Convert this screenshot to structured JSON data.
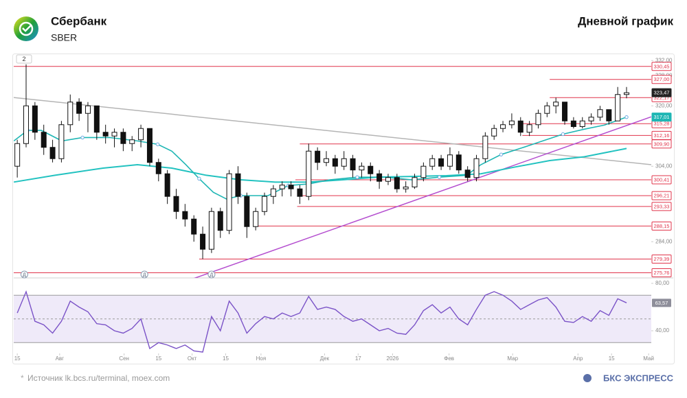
{
  "header": {
    "title": "Сбербанк",
    "ticker": "SBER",
    "chart_kind": "Дневной график"
  },
  "footer": {
    "source": "Источник lk.bcs.ru/terminal, moex.com",
    "brand": "БКС ЭКСПРЕСС"
  },
  "chart_data": {
    "type": "candlestick",
    "up_color": "#ffffff",
    "down_color": "#111111",
    "outline_color": "#111111",
    "xlim": [
      -0.4,
      71.8
    ],
    "ylim": [
      274.4,
      333.5
    ],
    "yticks": [
      {
        "value": 332,
        "label": "332,00"
      },
      {
        "value": 328,
        "label": "328,00"
      },
      {
        "value": 320,
        "label": "320,00"
      },
      {
        "value": 304,
        "label": "304,00"
      },
      {
        "value": 284,
        "label": "284,00"
      }
    ],
    "xticks": [
      {
        "value": 0,
        "label": "15"
      },
      {
        "value": 4.8,
        "label": "Авг"
      },
      {
        "value": 12.1,
        "label": "Сен"
      },
      {
        "value": 16.0,
        "label": "15"
      },
      {
        "value": 19.8,
        "label": "Окт"
      },
      {
        "value": 23.6,
        "label": "15"
      },
      {
        "value": 27.6,
        "label": "Ноя"
      },
      {
        "value": 34.8,
        "label": "Дек"
      },
      {
        "value": 38.6,
        "label": "17"
      },
      {
        "value": 42.5,
        "label": "2026"
      },
      {
        "value": 48.9,
        "label": "Фев"
      },
      {
        "value": 56.1,
        "label": "Мар"
      },
      {
        "value": 63.5,
        "label": "Апр"
      },
      {
        "value": 67.3,
        "label": "15"
      },
      {
        "value": 71.5,
        "label": "Май"
      }
    ],
    "interval_chip": "2",
    "ohlc": [
      [
        304,
        311,
        301,
        310
      ],
      [
        310,
        331,
        309,
        320
      ],
      [
        320,
        321,
        311,
        313
      ],
      [
        313,
        315,
        307,
        309
      ],
      [
        309,
        311,
        305,
        306
      ],
      [
        306,
        316,
        305,
        315
      ],
      [
        315,
        323,
        313,
        321
      ],
      [
        321,
        322,
        316,
        318
      ],
      [
        318,
        321,
        313,
        320
      ],
      [
        320,
        320,
        311,
        313
      ],
      [
        313,
        315,
        310,
        312
      ],
      [
        312,
        314,
        309,
        313
      ],
      [
        313,
        314,
        308,
        310
      ],
      [
        310,
        312,
        308,
        311
      ],
      [
        311,
        315,
        309,
        314
      ],
      [
        314,
        314,
        304,
        305
      ],
      [
        305,
        306,
        300,
        302
      ],
      [
        302,
        303,
        294,
        296
      ],
      [
        296,
        298,
        290,
        292
      ],
      [
        292,
        294,
        288,
        290
      ],
      [
        290,
        291,
        284,
        286
      ],
      [
        286,
        288,
        279.4,
        282
      ],
      [
        282,
        293,
        281,
        292
      ],
      [
        292,
        293,
        285,
        287
      ],
      [
        287,
        303,
        286,
        302
      ],
      [
        302,
        304,
        294,
        296
      ],
      [
        296,
        297,
        285,
        288
      ],
      [
        288,
        293,
        287,
        292
      ],
      [
        292,
        297,
        291,
        296
      ],
      [
        296,
        299,
        294,
        298
      ],
      [
        298,
        300,
        296,
        299
      ],
      [
        299,
        300,
        296,
        298
      ],
      [
        298,
        299,
        294,
        296
      ],
      [
        296,
        310,
        295,
        308
      ],
      [
        308,
        309,
        303,
        305
      ],
      [
        305,
        308,
        304,
        306
      ],
      [
        306,
        307,
        302,
        304
      ],
      [
        304,
        308,
        303,
        306
      ],
      [
        306,
        307,
        301,
        303
      ],
      [
        303,
        305,
        301,
        304
      ],
      [
        304,
        305,
        300,
        302
      ],
      [
        302,
        303,
        298,
        300
      ],
      [
        300,
        302,
        299,
        301
      ],
      [
        301,
        302,
        297,
        298
      ],
      [
        298,
        300,
        297,
        298.5
      ],
      [
        298.5,
        302,
        298,
        301
      ],
      [
        301,
        305,
        300,
        304
      ],
      [
        304,
        307,
        303,
        306
      ],
      [
        306,
        307,
        303,
        304
      ],
      [
        304,
        309,
        303,
        307
      ],
      [
        307,
        308,
        302,
        303
      ],
      [
        303,
        304,
        300,
        301
      ],
      [
        301,
        307,
        300,
        306
      ],
      [
        306,
        313,
        305,
        312
      ],
      [
        312,
        315,
        311,
        314
      ],
      [
        314,
        316,
        313,
        315
      ],
      [
        315,
        318,
        314,
        316
      ],
      [
        316,
        317,
        312,
        313
      ],
      [
        313,
        316,
        312,
        315
      ],
      [
        315,
        319,
        314,
        318
      ],
      [
        318,
        321,
        317,
        320
      ],
      [
        320,
        322.17,
        318,
        321
      ],
      [
        321,
        321,
        315,
        316
      ],
      [
        316,
        317,
        314,
        314.5
      ],
      [
        314.5,
        317,
        314,
        316
      ],
      [
        316,
        318,
        315,
        317
      ],
      [
        317,
        320,
        316,
        319
      ],
      [
        319,
        319,
        315,
        316
      ],
      [
        316,
        325,
        316,
        323
      ],
      [
        323,
        325,
        322,
        323.47
      ]
    ],
    "last_price": {
      "value": 323.47,
      "label": "323,47",
      "color": "#222222"
    },
    "levels": [
      {
        "value": 330.45,
        "label": "330,45",
        "x0": -0.4
      },
      {
        "value": 327,
        "label": "327,00",
        "x0": 60.3
      },
      {
        "value": 322.17,
        "label": "322,17",
        "x0": 60.3
      },
      {
        "value": 315.28,
        "label": "315,28",
        "x0": 57.2
      },
      {
        "value": 312.16,
        "label": "312,16",
        "x0": 57.2
      },
      {
        "value": 309.9,
        "label": "309,90",
        "x0": 32
      },
      {
        "value": 300.41,
        "label": "300,41",
        "x0": 31.5
      },
      {
        "value": 296.21,
        "label": "296,21",
        "x0": 31.7
      },
      {
        "value": 293.33,
        "label": "293,33",
        "x0": 31.7
      },
      {
        "value": 288.15,
        "label": "288,15",
        "x0": 26.8
      },
      {
        "value": 279.39,
        "label": "279,39",
        "x0": 20.6
      },
      {
        "value": 275.76,
        "label": "275,76",
        "x0": -0.4
      }
    ],
    "level_color": "#e0334a",
    "ma_fast": {
      "color": "#1fb6b4",
      "label": "317,01",
      "x": [
        -0.39,
        1.17,
        2.72,
        5.05,
        7.39,
        10.5,
        13.6,
        15.9,
        17.5,
        19.1,
        20.6,
        22.2,
        23.7,
        25.3,
        26.8,
        28.4,
        30.7,
        33.0,
        35.4,
        38.5,
        41.6,
        44.7,
        47.8,
        50.9,
        52.5,
        54.8,
        57.2,
        59.5,
        61.8,
        64.2,
        66.5,
        69
      ],
      "values": [
        310.7,
        313.5,
        313.5,
        310.7,
        311.6,
        311.6,
        310.7,
        309.8,
        308.0,
        304.4,
        300.7,
        297.1,
        295.3,
        296.2,
        296.2,
        296.2,
        298.9,
        299.3,
        300.4,
        301.1,
        301.1,
        300.4,
        301.1,
        301.6,
        304.4,
        307.1,
        308.9,
        310.7,
        312.5,
        313.8,
        314.9,
        317.01
      ]
    },
    "ma_slow": {
      "color": "#22c2c0",
      "x": [
        -0.39,
        4.28,
        9.72,
        13.6,
        17.5,
        21.4,
        25.3,
        29.2,
        33.0,
        36.9,
        40.8,
        44.7,
        48.6,
        52.5,
        56.4,
        60.3,
        64.2,
        69
      ],
      "values": [
        299.8,
        301.6,
        303.5,
        304.4,
        303.5,
        301.6,
        300.4,
        299.8,
        299.8,
        300.4,
        301.1,
        301.3,
        301.5,
        302.0,
        303.8,
        305.5,
        306.5,
        308.7
      ]
    },
    "trendlines": [
      {
        "color": "#b4b4b4",
        "x": [
          -0.4,
          71.8
        ],
        "values": [
          322.2,
          304.4
        ]
      },
      {
        "color": "#b44ecf",
        "x": [
          17.5,
          71.8
        ],
        "values": [
          272.2,
          317.1
        ]
      }
    ],
    "events": [
      {
        "x": 0.8,
        "label": "Д"
      },
      {
        "x": 14.4,
        "label": "Д"
      },
      {
        "x": 22.0,
        "label": "Д"
      }
    ],
    "rsi": {
      "color": "#7a52c7",
      "ylim": [
        20.9,
        84.6
      ],
      "yticks": [
        {
          "value": 80,
          "label": "80,00"
        },
        {
          "value": 40,
          "label": "40,00"
        }
      ],
      "band": [
        30,
        70
      ],
      "mid": 50,
      "values": [
        55,
        73,
        48,
        45,
        38,
        48,
        65,
        60,
        56,
        46,
        45,
        40,
        38,
        42,
        50,
        25,
        30,
        28,
        25,
        28,
        23,
        22,
        52,
        40,
        65,
        55,
        38,
        46,
        52,
        50,
        55,
        52,
        55,
        69,
        58,
        60,
        58,
        52,
        48,
        50,
        45,
        40,
        42,
        38,
        37,
        45,
        57,
        62,
        55,
        60,
        50,
        45,
        58,
        70,
        73,
        70,
        65,
        58,
        62,
        66,
        68,
        60,
        48,
        47,
        52,
        48,
        57,
        53,
        67,
        63.57
      ],
      "value_labels": {
        "69": "63,57"
      }
    }
  }
}
